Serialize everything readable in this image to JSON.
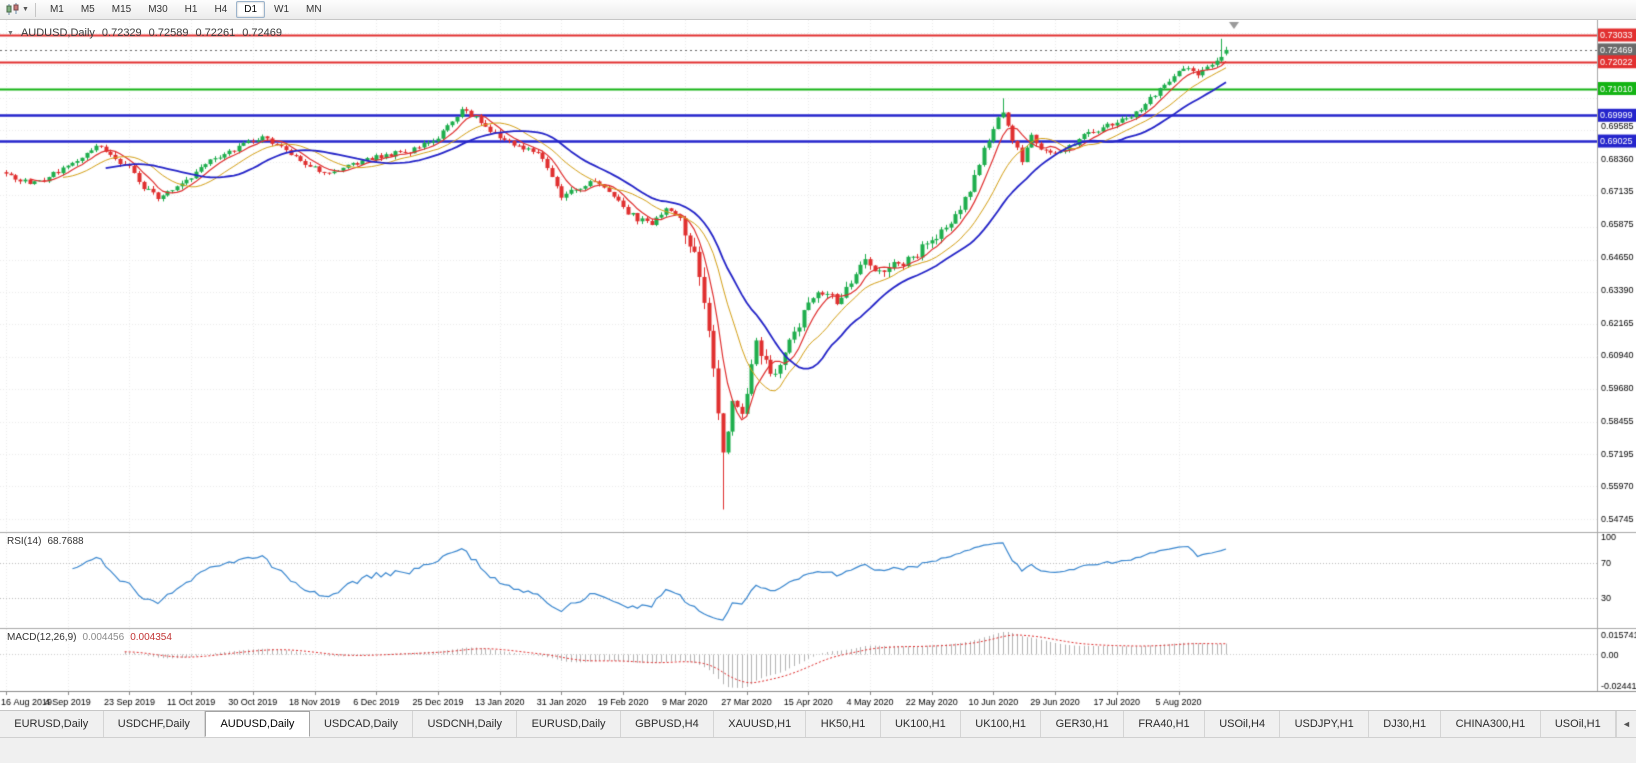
{
  "toolbar": {
    "timeframes": [
      "M1",
      "M5",
      "M15",
      "M30",
      "H1",
      "H4",
      "D1",
      "W1",
      "MN"
    ],
    "active_timeframe": "D1"
  },
  "header": {
    "symbol_label": "AUDUSD,Daily",
    "open": "0.72329",
    "high": "0.72589",
    "low": "0.72261",
    "close": "0.72469"
  },
  "price_axis": {
    "ticks": [
      "0.69585",
      "0.68360",
      "0.67135",
      "0.65875",
      "0.64650",
      "0.63390",
      "0.62165",
      "0.60940",
      "0.59680",
      "0.58455",
      "0.57195",
      "0.55970",
      "0.54745"
    ],
    "tick_start": 0.54745,
    "tick_step": 0.01225
  },
  "tabs": {
    "labels": [
      "EURUSD,Daily",
      "USDCHF,Daily",
      "AUDUSD,Daily",
      "USDCAD,Daily",
      "USDCNH,Daily",
      "EURUSD,Daily",
      "GBPUSD,H4",
      "XAUUSD,H1",
      "HK50,H1",
      "UK100,H1",
      "UK100,H1",
      "GER30,H1",
      "FRA40,H1",
      "USOil,H4",
      "USDJPY,H1",
      "DJ30,H1",
      "CHINA300,H1",
      "USOil,H1"
    ],
    "active_index": 2,
    "scroll_icon": "◄"
  },
  "chart_data": {
    "type": "candlestick",
    "symbol": "AUDUSD",
    "timeframe": "Daily",
    "x_axis_labels": [
      "16 Aug 2019",
      "4 Sep 2019",
      "23 Sep 2019",
      "11 Oct 2019",
      "30 Oct 2019",
      "18 Nov 2019",
      "6 Dec 2019",
      "25 Dec 2019",
      "13 Jan 2020",
      "31 Jan 2020",
      "19 Feb 2020",
      "9 Mar 2020",
      "27 Mar 2020",
      "15 Apr 2020",
      "4 May 2020",
      "22 May 2020",
      "10 Jun 2020",
      "29 Jun 2020",
      "17 Jul 2020",
      "5 Aug 2020"
    ],
    "candles_per_label": 13,
    "n_candles": 258,
    "view_price_range": [
      0.5425,
      0.736
    ],
    "last_candle": {
      "open": 0.72329,
      "high": 0.72589,
      "low": 0.72261,
      "close": 0.72469
    },
    "close_waypoints": [
      [
        0,
        0.6778
      ],
      [
        4,
        0.6747
      ],
      [
        8,
        0.676
      ],
      [
        13,
        0.6802
      ],
      [
        17,
        0.6858
      ],
      [
        20,
        0.6888
      ],
      [
        23,
        0.684
      ],
      [
        26,
        0.6798
      ],
      [
        29,
        0.673
      ],
      [
        32,
        0.6688
      ],
      [
        36,
        0.6722
      ],
      [
        39,
        0.677
      ],
      [
        43,
        0.6832
      ],
      [
        47,
        0.6862
      ],
      [
        51,
        0.6898
      ],
      [
        54,
        0.6922
      ],
      [
        57,
        0.6888
      ],
      [
        61,
        0.684
      ],
      [
        65,
        0.6798
      ],
      [
        69,
        0.6788
      ],
      [
        73,
        0.6812
      ],
      [
        78,
        0.6842
      ],
      [
        82,
        0.6855
      ],
      [
        86,
        0.6868
      ],
      [
        90,
        0.6905
      ],
      [
        93,
        0.6952
      ],
      [
        96,
        0.7022
      ],
      [
        99,
        0.6988
      ],
      [
        102,
        0.6942
      ],
      [
        106,
        0.6902
      ],
      [
        110,
        0.6872
      ],
      [
        113,
        0.6838
      ],
      [
        117,
        0.6698
      ],
      [
        120,
        0.6722
      ],
      [
        124,
        0.6748
      ],
      [
        127,
        0.6708
      ],
      [
        130,
        0.6648
      ],
      [
        133,
        0.6608
      ],
      [
        136,
        0.6588
      ],
      [
        139,
        0.6652
      ],
      [
        142,
        0.6608
      ],
      [
        144,
        0.6512
      ],
      [
        146,
        0.6392
      ],
      [
        148,
        0.6162
      ],
      [
        150,
        0.5888
      ],
      [
        151,
        0.5742
      ],
      [
        152,
        0.5822
      ],
      [
        153,
        0.5938
      ],
      [
        155,
        0.5872
      ],
      [
        157,
        0.6042
      ],
      [
        158,
        0.6128
      ],
      [
        160,
        0.6058
      ],
      [
        162,
        0.6018
      ],
      [
        165,
        0.6142
      ],
      [
        168,
        0.6248
      ],
      [
        170,
        0.6312
      ],
      [
        172,
        0.6338
      ],
      [
        175,
        0.6292
      ],
      [
        178,
        0.6372
      ],
      [
        181,
        0.6452
      ],
      [
        184,
        0.6408
      ],
      [
        187,
        0.6432
      ],
      [
        191,
        0.6462
      ],
      [
        194,
        0.6512
      ],
      [
        197,
        0.6552
      ],
      [
        200,
        0.6622
      ],
      [
        203,
        0.6712
      ],
      [
        206,
        0.6872
      ],
      [
        209,
        0.6982
      ],
      [
        210,
        0.7002
      ],
      [
        212,
        0.6912
      ],
      [
        214,
        0.6832
      ],
      [
        216,
        0.6928
      ],
      [
        218,
        0.6872
      ],
      [
        221,
        0.6852
      ],
      [
        223,
        0.6868
      ],
      [
        226,
        0.6912
      ],
      [
        229,
        0.6942
      ],
      [
        232,
        0.6962
      ],
      [
        235,
        0.6982
      ],
      [
        238,
        0.7008
      ],
      [
        241,
        0.7062
      ],
      [
        244,
        0.7122
      ],
      [
        247,
        0.7162
      ],
      [
        249,
        0.7188
      ],
      [
        251,
        0.7152
      ],
      [
        253,
        0.7182
      ],
      [
        255,
        0.7208
      ],
      [
        256,
        0.7228
      ],
      [
        257,
        0.72469
      ]
    ],
    "wick_low_overrides": {
      "151": 0.551
    },
    "wick_high_overrides": {
      "96": 0.7032,
      "210": 0.7064,
      "256": 0.7289
    },
    "volatility": {
      "base": 0.0013,
      "crash_range": [
        143,
        162
      ],
      "crash": 0.0042,
      "recovery_range": [
        162,
        205
      ],
      "recovery": 0.0022
    },
    "up_color": "#1fae4d",
    "down_color": "#e03030",
    "moving_averages": [
      {
        "period": 6,
        "color": "#e03030",
        "width": 1.2
      },
      {
        "period": 13,
        "color": "#d4a017",
        "width": 1
      },
      {
        "period": 22,
        "color": "#2525c8",
        "width": 1.8
      }
    ],
    "levels": [
      {
        "price": 0.73033,
        "label": "0.73033",
        "color": "#e23030",
        "width": 2,
        "style": "solid"
      },
      {
        "price": 0.72469,
        "label": "0.72469",
        "color": "#6a6a6a",
        "width": 1,
        "style": "current"
      },
      {
        "price": 0.72022,
        "label": "0.72022",
        "color": "#e23030",
        "width": 2,
        "style": "solid"
      },
      {
        "price": 0.7101,
        "label": "0.71010",
        "color": "#14b414",
        "width": 2,
        "style": "solid"
      },
      {
        "price": 0.69999,
        "label": "0.69999",
        "color": "#2525cc",
        "width": 2.5,
        "style": "solid"
      },
      {
        "price": 0.69025,
        "label": "0.69025",
        "color": "#2525cc",
        "width": 2.5,
        "style": "solid"
      }
    ],
    "indicators": {
      "rsi": {
        "label": "RSI(14)",
        "value": "68.7688",
        "period": 14,
        "color": "#3a87cf",
        "axis_labels": [
          "100",
          "70",
          "30"
        ],
        "level_lines": [
          70,
          30
        ]
      },
      "macd": {
        "label": "MACD(12,26,9)",
        "main_value": "0.004456",
        "signal_value": "0.004354",
        "fast": 12,
        "slow": 26,
        "signal": 9,
        "hist_color": "#b4b4b4",
        "signal_color": "#e03030",
        "axis_max": "0.015741",
        "axis_zero": "0.00",
        "axis_min": "-0.02441"
      }
    }
  }
}
